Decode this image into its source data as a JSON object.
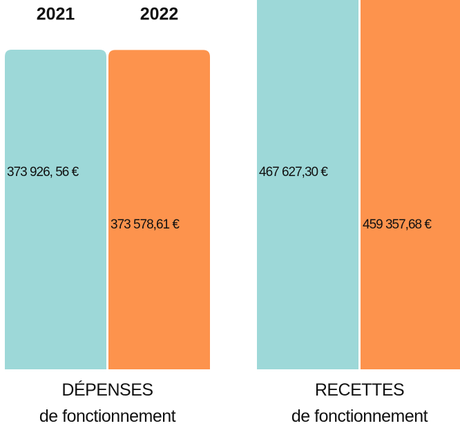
{
  "chart_data": {
    "type": "bar",
    "categories": [
      "DÉPENSES\nde fonctionnement",
      "RECETTES\nde fonctionnement"
    ],
    "series": [
      {
        "name": "2021",
        "color": "#9dd8d8",
        "values": [
          373926.56,
          467627.3
        ],
        "value_labels": [
          "373 926, 56 €",
          "467 627,30 €"
        ]
      },
      {
        "name": "2022",
        "color": "#fd934d",
        "values": [
          373578.61,
          459357.68
        ],
        "value_labels": [
          "373 578,61 €",
          "459 357,68 €"
        ]
      }
    ]
  }
}
